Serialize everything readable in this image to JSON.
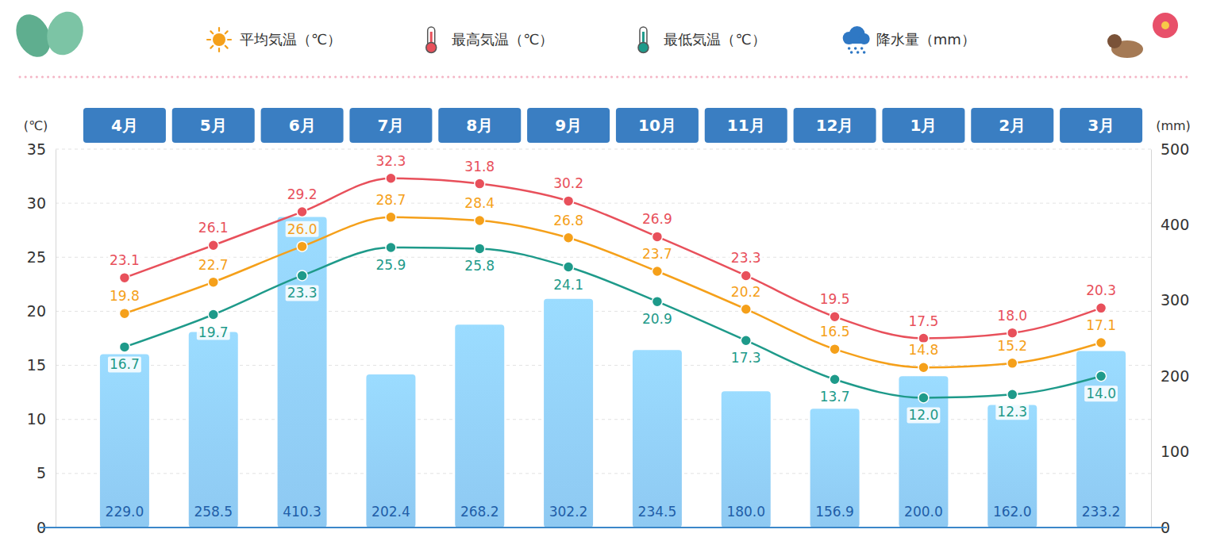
{
  "chart_data": {
    "type": "bar",
    "categories": [
      "4月",
      "5月",
      "6月",
      "7月",
      "8月",
      "9月",
      "10月",
      "11月",
      "12月",
      "1月",
      "2月",
      "3月"
    ],
    "series": [
      {
        "name": "平均気温（℃）",
        "type": "line",
        "color": "#f5a01a",
        "marker": "circle",
        "values": [
          19.8,
          22.7,
          26.0,
          28.7,
          28.4,
          26.8,
          23.7,
          20.2,
          16.5,
          14.8,
          15.2,
          17.1
        ],
        "value_labels": [
          "19.8",
          "22.7",
          "26.0",
          "28.7",
          "28.4",
          "26.8",
          "23.7",
          "20.2",
          "16.5",
          "14.8",
          "15.2",
          "17.1"
        ]
      },
      {
        "name": "最高気温（℃）",
        "type": "line",
        "color": "#e8505b",
        "marker": "circle",
        "values": [
          23.1,
          26.1,
          29.2,
          32.3,
          31.8,
          30.2,
          26.9,
          23.3,
          19.5,
          17.5,
          18.0,
          20.3
        ],
        "value_labels": [
          "23.1",
          "26.1",
          "29.2",
          "32.3",
          "31.8",
          "30.2",
          "26.9",
          "23.3",
          "19.5",
          "17.5",
          "18.0",
          "20.3"
        ]
      },
      {
        "name": "最低気温（℃）",
        "type": "line",
        "color": "#1e9a8a",
        "marker": "circle",
        "values": [
          16.7,
          19.7,
          23.3,
          25.9,
          25.8,
          24.1,
          20.9,
          17.3,
          13.7,
          12.0,
          12.3,
          14.0
        ],
        "value_labels": [
          "16.7",
          "19.7",
          "23.3",
          "25.9",
          "25.8",
          "24.1",
          "20.9",
          "17.3",
          "13.7",
          "12.0",
          "12.3",
          "14.0"
        ]
      },
      {
        "name": "降水量（mm）",
        "type": "bar",
        "axis": "y2",
        "color": "#8ec9f2",
        "values": [
          229.0,
          258.5,
          410.3,
          202.4,
          268.2,
          302.2,
          234.5,
          180.0,
          156.9,
          200.0,
          162.0,
          233.2
        ],
        "value_labels": [
          "229.0",
          "258.5",
          "410.3",
          "202.4",
          "268.2",
          "302.2",
          "234.5",
          "180.0",
          "156.9",
          "200.0",
          "162.0",
          "233.2"
        ]
      }
    ],
    "y_label": "(℃)",
    "y2_label": "(mm)",
    "ylim": [
      0,
      35
    ],
    "yticks": [
      0,
      5,
      10,
      15,
      20,
      25,
      30,
      35
    ],
    "y2lim": [
      0,
      500
    ],
    "y2ticks": [
      0,
      100,
      200,
      300,
      400,
      500
    ],
    "grid": true,
    "data_labels": true,
    "legend": "top"
  }
}
